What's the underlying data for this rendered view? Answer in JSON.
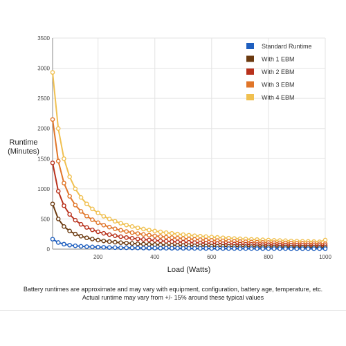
{
  "chart_data": {
    "type": "line",
    "xlabel": "Load (Watts)",
    "ylabel": [
      "Runtime",
      "(Minutes)"
    ],
    "xlim": [
      40,
      1000
    ],
    "ylim": [
      0,
      3500
    ],
    "xticks": [
      200,
      400,
      600,
      800,
      1000
    ],
    "yticks": [
      0,
      500,
      1000,
      1500,
      2000,
      2500,
      3000,
      3500
    ],
    "grid": true,
    "legend_position": "top-right",
    "x": [
      40,
      60,
      80,
      100,
      120,
      140,
      160,
      180,
      200,
      220,
      240,
      260,
      280,
      300,
      320,
      340,
      360,
      380,
      400,
      420,
      440,
      460,
      480,
      500,
      520,
      540,
      560,
      580,
      600,
      620,
      640,
      660,
      680,
      700,
      720,
      740,
      760,
      780,
      800,
      820,
      840,
      860,
      880,
      900,
      920,
      940,
      960,
      980,
      1000
    ],
    "series": [
      {
        "name": "Standard Runtime",
        "color": "#1f5fbf",
        "values": [
          165,
          110,
          82,
          66,
          55,
          47,
          41,
          37,
          33,
          30,
          27,
          25,
          24,
          22,
          21,
          19,
          18,
          17,
          17,
          16,
          15,
          14,
          14,
          13,
          13,
          12,
          12,
          11,
          11,
          11,
          10,
          10,
          10,
          9,
          9,
          9,
          9,
          8,
          8,
          8,
          8,
          8,
          7,
          7,
          7,
          7,
          7,
          7,
          7
        ]
      },
      {
        "name": "With 1 EBM",
        "color": "#6b3a10",
        "values": [
          750,
          500,
          375,
          300,
          250,
          214,
          188,
          167,
          150,
          136,
          125,
          115,
          107,
          100,
          94,
          88,
          83,
          79,
          75,
          71,
          68,
          65,
          63,
          60,
          58,
          56,
          54,
          52,
          50,
          48,
          47,
          45,
          44,
          43,
          42,
          41,
          39,
          38,
          38,
          37,
          36,
          35,
          34,
          33,
          33,
          32,
          31,
          31,
          30
        ]
      },
      {
        "name": "With 2 EBM",
        "color": "#b8311c",
        "values": [
          1430,
          960,
          720,
          576,
          480,
          411,
          360,
          320,
          288,
          262,
          240,
          222,
          206,
          192,
          180,
          169,
          160,
          152,
          144,
          137,
          131,
          125,
          120,
          115,
          111,
          107,
          103,
          99,
          96,
          93,
          90,
          87,
          85,
          82,
          80,
          78,
          76,
          74,
          72,
          70,
          69,
          67,
          65,
          64,
          63,
          61,
          60,
          59,
          58
        ]
      },
      {
        "name": "With 3 EBM",
        "color": "#e07528",
        "values": [
          2150,
          1460,
          1095,
          876,
          730,
          626,
          548,
          487,
          438,
          398,
          365,
          337,
          313,
          292,
          274,
          258,
          243,
          231,
          219,
          209,
          199,
          190,
          183,
          175,
          168,
          162,
          156,
          151,
          146,
          141,
          137,
          133,
          129,
          125,
          122,
          118,
          115,
          112,
          110,
          107,
          104,
          102,
          100,
          97,
          95,
          93,
          91,
          89,
          88
        ]
      },
      {
        "name": "With 4 EBM",
        "color": "#f0c050",
        "values": [
          2930,
          2000,
          1500,
          1200,
          1000,
          857,
          750,
          667,
          600,
          545,
          500,
          462,
          429,
          400,
          375,
          353,
          333,
          316,
          300,
          286,
          273,
          261,
          250,
          240,
          231,
          222,
          214,
          207,
          200,
          194,
          188,
          182,
          176,
          171,
          167,
          162,
          158,
          154,
          150,
          146,
          143,
          140,
          136,
          133,
          130,
          128,
          125,
          122,
          150
        ]
      }
    ]
  },
  "notes": [
    "Battery runtimes are approximate and may vary with equipment, configuration, battery age, temperature, etc.",
    "Actual runtime may vary from +/- 15% around these typical values"
  ]
}
